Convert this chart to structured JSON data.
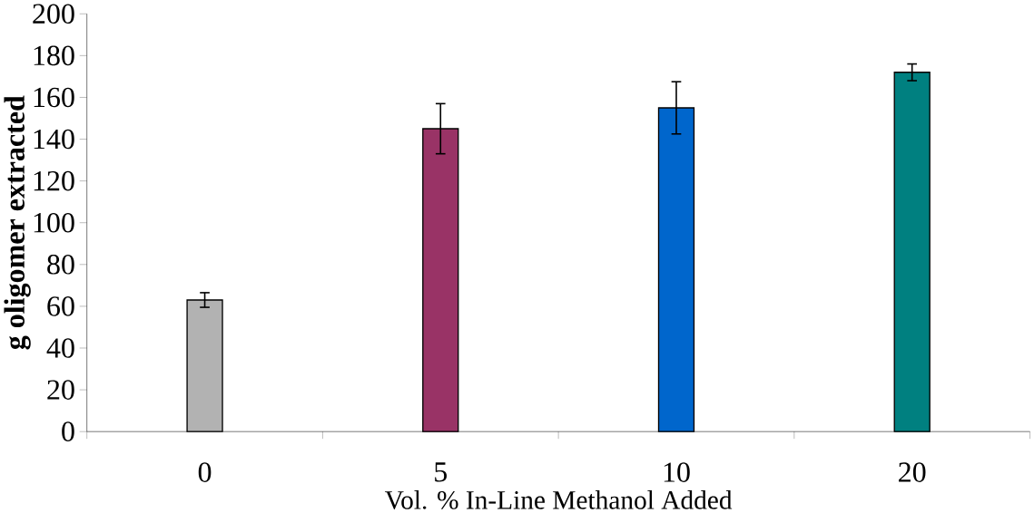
{
  "chart_data": {
    "type": "bar",
    "xlabel": "Vol. % In-Line Methanol Added",
    "ylabel": "g oligomer extracted",
    "categories": [
      "0",
      "5",
      "10",
      "20"
    ],
    "values": [
      63,
      145,
      155,
      172
    ],
    "errors": [
      3.5,
      12,
      12.5,
      4
    ],
    "colors": [
      "#b2b2b2",
      "#993366",
      "#0066cc",
      "#008080"
    ],
    "ylim": [
      0,
      200
    ],
    "yticks": [
      0,
      20,
      40,
      60,
      80,
      100,
      120,
      140,
      160,
      180,
      200
    ],
    "grid": false
  }
}
